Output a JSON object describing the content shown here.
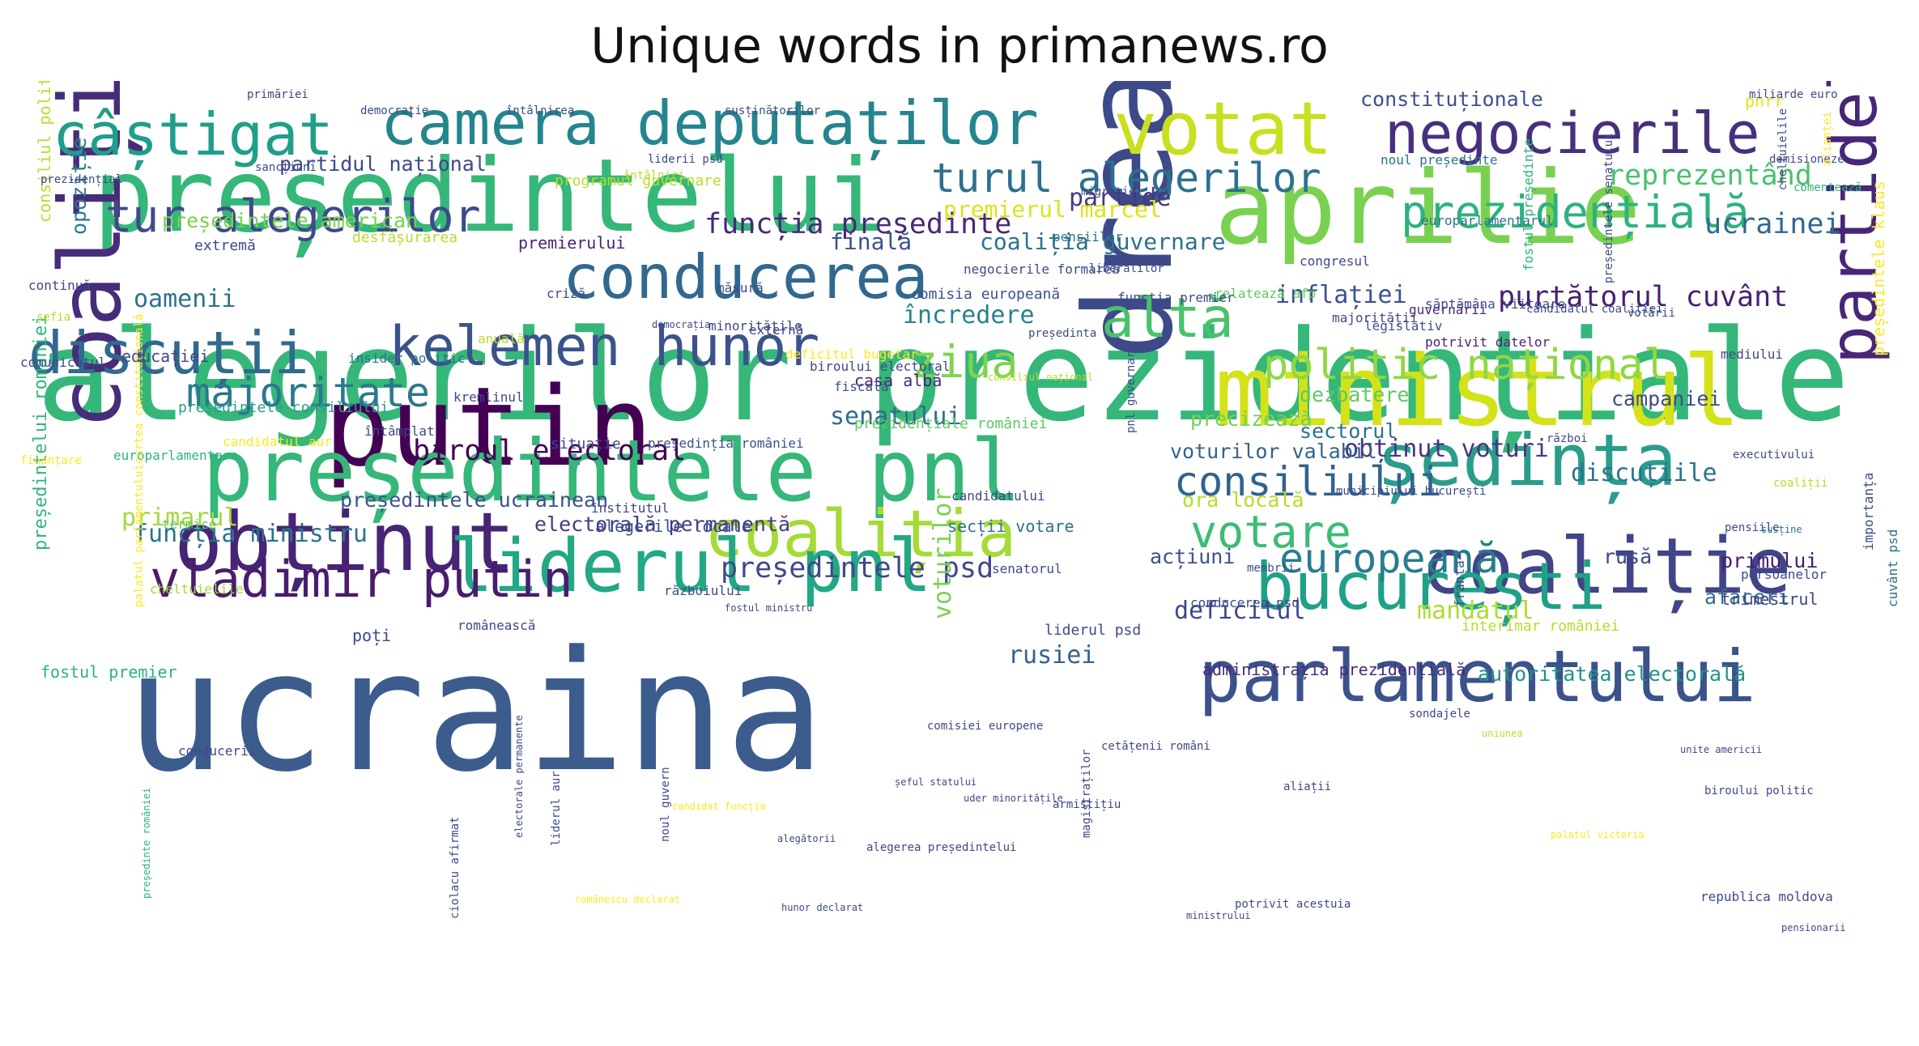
{
  "title": "Unique words in primanews.ro",
  "words": [
    {
      "text": "alegerilor prezidențiale",
      "color": "#35b779"
    },
    {
      "text": "ucraina",
      "color": "#3b5c8c"
    },
    {
      "text": "președintelui",
      "color": "#35b779"
    },
    {
      "text": "dreapta",
      "color": "#3e4989"
    },
    {
      "text": "putin",
      "color": "#440154"
    },
    {
      "text": "ministrul",
      "color": "#d4e21a"
    },
    {
      "text": "aprilie",
      "color": "#7ad151"
    },
    {
      "text": "președintele pnl",
      "color": "#35b779"
    },
    {
      "text": "obținut",
      "color": "#482475"
    },
    {
      "text": "coaliției",
      "color": "#472c7a"
    },
    {
      "text": "coaliția",
      "color": "#a5db36"
    },
    {
      "text": "liderul pnl",
      "color": "#22a884"
    },
    {
      "text": "coaliție",
      "color": "#414487"
    },
    {
      "text": "parlamentului",
      "color": "#3b528b"
    },
    {
      "text": "bucurești",
      "color": "#1fa187"
    },
    {
      "text": "ședința",
      "color": "#2a9d8a"
    },
    {
      "text": "partidele",
      "color": "#482677"
    },
    {
      "text": "votat",
      "color": "#c8e020"
    },
    {
      "text": "camera deputaților",
      "color": "#25858e"
    },
    {
      "text": "conducerea",
      "color": "#31688e"
    },
    {
      "text": "câștigat",
      "color": "#1f9e89"
    },
    {
      "text": "negocierile",
      "color": "#46307e"
    },
    {
      "text": "kelemen hunor",
      "color": "#3b528b"
    },
    {
      "text": "discuții",
      "color": "#306a8e"
    },
    {
      "text": "vladimir putin",
      "color": "#481c6e"
    },
    {
      "text": "tur alegerilor",
      "color": "#3e4a89"
    },
    {
      "text": "turul alegerilor",
      "color": "#2d708e"
    },
    {
      "text": "altă",
      "color": "#4ac16d"
    },
    {
      "text": "politic național",
      "color": "#90d743"
    },
    {
      "text": "prezidențială",
      "color": "#2db27d"
    },
    {
      "text": "majoritate",
      "color": "#2a788e"
    },
    {
      "text": "consiliului",
      "color": "#33638d"
    },
    {
      "text": "europeană",
      "color": "#287c8e"
    },
    {
      "text": "ziua",
      "color": "#7fd34e"
    },
    {
      "text": "votare",
      "color": "#3dbc74"
    },
    {
      "text": "ucrainei",
      "color": "#31688e"
    },
    {
      "text": "reprezentând",
      "color": "#4ac16d"
    },
    {
      "text": "constituționale",
      "color": "#3b528b"
    },
    {
      "text": "purtătorul cuvânt",
      "color": "#481f70"
    },
    {
      "text": "biroul electoral",
      "color": "#440154"
    },
    {
      "text": "funcția președinte",
      "color": "#482878"
    },
    {
      "text": "președintele psd",
      "color": "#3e4989"
    },
    {
      "text": "funcția ministru",
      "color": "#2c728e"
    },
    {
      "text": "primarul",
      "color": "#a0da39"
    },
    {
      "text": "obținut voturi",
      "color": "#453781"
    },
    {
      "text": "discuțiile",
      "color": "#2c728e"
    },
    {
      "text": "deficitul",
      "color": "#3e4989"
    },
    {
      "text": "mandatul",
      "color": "#addc30"
    },
    {
      "text": "senatului",
      "color": "#2f6c8e"
    },
    {
      "text": "inflației",
      "color": "#3b528b"
    },
    {
      "text": "încredere",
      "color": "#26828e"
    },
    {
      "text": "oamenii",
      "color": "#2c728e"
    },
    {
      "text": "partide",
      "color": "#453882"
    },
    {
      "text": "premierul marcel",
      "color": "#dde318"
    },
    {
      "text": "coaliția guvernare",
      "color": "#2d708e"
    },
    {
      "text": "finală",
      "color": "#3b528b"
    },
    {
      "text": "președintele american",
      "color": "#7ad151"
    },
    {
      "text": "președintele ucrainean",
      "color": "#3a538b"
    },
    {
      "text": "electorală permanentă",
      "color": "#443a83"
    },
    {
      "text": "partidul național",
      "color": "#3e4989"
    },
    {
      "text": "ora locală",
      "color": "#b5de2b"
    },
    {
      "text": "rusiei",
      "color": "#33638d"
    },
    {
      "text": "voturilor",
      "color": "#7ad151"
    },
    {
      "text": "autoritatea electorală",
      "color": "#21918c"
    },
    {
      "text": "administrația prezidențială",
      "color": "#472a7a"
    },
    {
      "text": "precizează",
      "color": "#75d054"
    },
    {
      "text": "sectorul",
      "color": "#2c728e"
    },
    {
      "text": "voturilor valabil",
      "color": "#33638d"
    },
    {
      "text": "campaniei",
      "color": "#3e4a89"
    },
    {
      "text": "dezbatere",
      "color": "#5ec962"
    },
    {
      "text": "primului",
      "color": "#481d6f"
    },
    {
      "text": "afaceri",
      "color": "#2e6f8e"
    },
    {
      "text": "trimestrul",
      "color": "#414487"
    },
    {
      "text": "acțiuni",
      "color": "#3b528b"
    },
    {
      "text": "rusă",
      "color": "#3e4989"
    },
    {
      "text": "fostul premier",
      "color": "#2db27d"
    },
    {
      "text": "opoziție",
      "color": "#2a788e"
    },
    {
      "text": "consiliul politic",
      "color": "#b8de29"
    },
    {
      "text": "președintelui româniei",
      "color": "#31b57b"
    },
    {
      "text": "președintele klaus",
      "color": "#fde725"
    },
    {
      "text": "pnrr",
      "color": "#e5e419"
    },
    {
      "text": "extremă",
      "color": "#3e4989"
    },
    {
      "text": "premierului",
      "color": "#482475"
    },
    {
      "text": "desfășurarea",
      "color": "#b5de2b"
    },
    {
      "text": "congresul",
      "color": "#3e4989"
    },
    {
      "text": "legislativ",
      "color": "#3b528b"
    },
    {
      "text": "europarlamentarul",
      "color": "#2c728e"
    },
    {
      "text": "educației",
      "color": "#3e4989"
    },
    {
      "text": "casa albă",
      "color": "#482878"
    },
    {
      "text": "fiscală",
      "color": "#3b528b"
    },
    {
      "text": "senatorul",
      "color": "#3e4989"
    },
    {
      "text": "programul guvernare",
      "color": "#b5de2b"
    },
    {
      "text": "pensiilor",
      "color": "#2c728e"
    },
    {
      "text": "criză",
      "color": "#3e4989"
    },
    {
      "text": "președintele consiliului",
      "color": "#2a9d8a"
    },
    {
      "text": "comisia europeană",
      "color": "#3b528b"
    },
    {
      "text": "guvernării",
      "color": "#482878"
    },
    {
      "text": "majorității",
      "color": "#3e4989"
    },
    {
      "text": "institutul",
      "color": "#3e4989"
    },
    {
      "text": "alegerile locale",
      "color": "#3b528b"
    },
    {
      "text": "secții votare",
      "color": "#2c728e"
    },
    {
      "text": "persoanelor",
      "color": "#3e4989"
    },
    {
      "text": "liderul psd",
      "color": "#3e4989"
    },
    {
      "text": "interimar româniei",
      "color": "#b5de2b"
    },
    {
      "text": "președinția româniei",
      "color": "#3b528b"
    },
    {
      "text": "candidatul aur",
      "color": "#fde725"
    },
    {
      "text": "europarlamentare",
      "color": "#2db27d"
    },
    {
      "text": "cheltuielile",
      "color": "#a0da39"
    },
    {
      "text": "potrivit datelor",
      "color": "#481f70"
    },
    {
      "text": "prezidențiale româniei",
      "color": "#5ec962"
    },
    {
      "text": "municipiului bucurești",
      "color": "#3e4989"
    },
    {
      "text": "războiului",
      "color": "#3e4989"
    },
    {
      "text": "minoritățile",
      "color": "#3e4989"
    },
    {
      "text": "insider politic",
      "color": "#2c728e"
    },
    {
      "text": "externă",
      "color": "#3e4989"
    },
    {
      "text": "continuă",
      "color": "#3e4989"
    },
    {
      "text": "măsură",
      "color": "#3e4989"
    },
    {
      "text": "anuală",
      "color": "#b5de2b"
    },
    {
      "text": "comunicatul",
      "color": "#3e4989"
    },
    {
      "text": "poți",
      "color": "#3e4989"
    },
    {
      "text": "mediului",
      "color": "#3e4989"
    },
    {
      "text": "susținătorilor",
      "color": "#3e4989"
    },
    {
      "text": "relatează afp",
      "color": "#5ec962"
    },
    {
      "text": "fostul președinte",
      "color": "#2db27d"
    },
    {
      "text": "franța",
      "color": "#3e4989"
    },
    {
      "text": "funcția premier",
      "color": "#3e4989"
    },
    {
      "text": "conducerea psd",
      "color": "#3e4989"
    },
    {
      "text": "primăriei",
      "color": "#3e4989"
    },
    {
      "text": "democrație",
      "color": "#3e4989"
    },
    {
      "text": "întâlnirea",
      "color": "#3e4989"
    },
    {
      "text": "cuvânt psd",
      "color": "#2c728e"
    },
    {
      "text": "biroului electoral",
      "color": "#3e4989"
    },
    {
      "text": "noul președinte",
      "color": "#2c728e"
    },
    {
      "text": "miliarde euro",
      "color": "#3e4989"
    },
    {
      "text": "demisioneze",
      "color": "#3e4989"
    },
    {
      "text": "migrației",
      "color": "#3e4989"
    },
    {
      "text": "prezidențial",
      "color": "#3e4989"
    },
    {
      "text": "sancțiuni",
      "color": "#3e4989"
    },
    {
      "text": "întâlniri",
      "color": "#b5de2b"
    },
    {
      "text": "liderii psd",
      "color": "#3e4989"
    },
    {
      "text": "negocierile formarea",
      "color": "#3e4989"
    },
    {
      "text": "liberalilor",
      "color": "#3e4989"
    },
    {
      "text": "șefia",
      "color": "#b5de2b"
    },
    {
      "text": "democrația",
      "color": "#3e4989"
    },
    {
      "text": "președinta",
      "color": "#3e4989"
    },
    {
      "text": "săptămâna viitoare",
      "color": "#3e4989"
    },
    {
      "text": "candidatul coaliției",
      "color": "#3e4989"
    },
    {
      "text": "votării",
      "color": "#3e4989"
    },
    {
      "text": "comentează",
      "color": "#2db27d"
    },
    {
      "text": "cheltuielile",
      "color": "#3e4989"
    },
    {
      "text": "alianței",
      "color": "#fde725"
    },
    {
      "text": "conducerii",
      "color": "#3e4989"
    },
    {
      "text": "deficitul bugetar",
      "color": "#fde725"
    },
    {
      "text": "kremlinul",
      "color": "#3e4989"
    },
    {
      "text": "situație",
      "color": "#3e4989"
    },
    {
      "text": "finanțare",
      "color": "#fde725"
    },
    {
      "text": "termice",
      "color": "#5ec962"
    },
    {
      "text": "candidatului",
      "color": "#3e4989"
    },
    {
      "text": "război",
      "color": "#3e4989"
    },
    {
      "text": "executivului",
      "color": "#3e4989"
    },
    {
      "text": "coaliții",
      "color": "#b5de2b"
    },
    {
      "text": "pnl guvernare",
      "color": "#3e4989"
    },
    {
      "text": "consiliul național",
      "color": "#b5de2b"
    },
    {
      "text": "pensiile",
      "color": "#3e4989"
    },
    {
      "text": "susține",
      "color": "#2c728e"
    },
    {
      "text": "membrii",
      "color": "#3e4989"
    },
    {
      "text": "importanța",
      "color": "#3e4989"
    },
    {
      "text": "președintele senatului",
      "color": "#3e4989"
    },
    {
      "text": "sondajele",
      "color": "#3e4989"
    },
    {
      "text": "uniunea",
      "color": "#b5de2b"
    },
    {
      "text": "unite americii",
      "color": "#3e4989"
    },
    {
      "text": "întâmplat",
      "color": "#3e4989"
    },
    {
      "text": "românească",
      "color": "#3e4989"
    },
    {
      "text": "fostul ministru",
      "color": "#3e4989"
    },
    {
      "text": "comisiei europene",
      "color": "#3e4989"
    },
    {
      "text": "cetățenii români",
      "color": "#3e4989"
    },
    {
      "text": "aliații",
      "color": "#3e4989"
    },
    {
      "text": "biroului politic",
      "color": "#3e4989"
    },
    {
      "text": "șeful statului",
      "color": "#3e4989"
    },
    {
      "text": "uder minoritățile",
      "color": "#3e4989"
    },
    {
      "text": "candidat funcția",
      "color": "#fde725"
    },
    {
      "text": "alegătorii",
      "color": "#3e4989"
    },
    {
      "text": "alegerea președintelui",
      "color": "#3e4989"
    },
    {
      "text": "armistițiu",
      "color": "#3e4989"
    },
    {
      "text": "palatul victoria",
      "color": "#fde725"
    },
    {
      "text": "republica moldova",
      "color": "#3e4989"
    },
    {
      "text": "potrivit acestuia",
      "color": "#3e4989"
    },
    {
      "text": "ministrului",
      "color": "#3e4989"
    },
    {
      "text": "magistraților",
      "color": "#3e4989"
    },
    {
      "text": "noul guvern",
      "color": "#3e4989"
    },
    {
      "text": "liderul aur",
      "color": "#3e4989"
    },
    {
      "text": "electorale permanente",
      "color": "#3e4989"
    },
    {
      "text": "ciolacu afirmat",
      "color": "#3e4989"
    },
    {
      "text": "românescu declarat",
      "color": "#fde725"
    },
    {
      "text": "hunor declarat",
      "color": "#3e4989"
    },
    {
      "text": "pensionarii",
      "color": "#3e4989"
    },
    {
      "text": "președinte româniei",
      "color": "#2db27d"
    },
    {
      "text": "palatul parlamentuluicurtea constituțională",
      "color": "#fde725"
    }
  ]
}
